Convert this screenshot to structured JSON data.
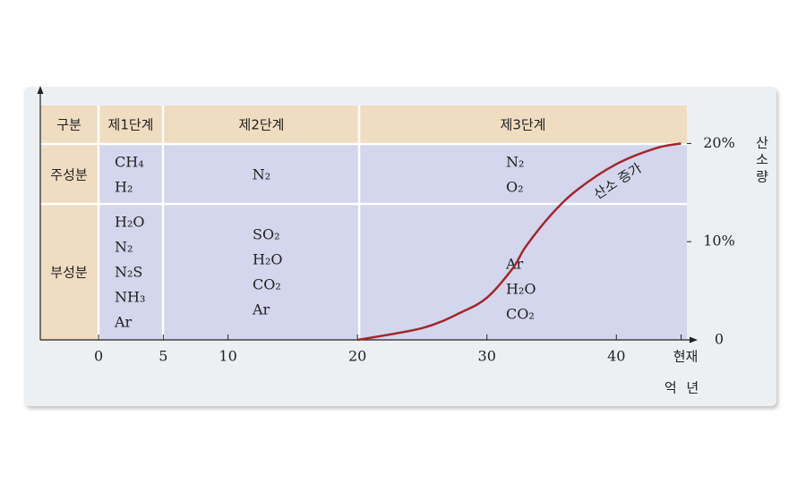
{
  "table": {
    "header": [
      "구분",
      "제1단계",
      "제2단계",
      "제3단계"
    ],
    "rows": [
      {
        "label": "주성분",
        "cells": [
          [
            "CH₄",
            "H₂"
          ],
          [
            "N₂"
          ],
          [
            "N₂",
            "O₂"
          ]
        ]
      },
      {
        "label": "부성분",
        "cells": [
          [
            "H₂O",
            "N₂",
            "N₂S",
            "NH₃",
            "Ar"
          ],
          [
            "SO₂",
            "H₂O",
            "CO₂",
            "Ar"
          ],
          [
            "Ar",
            "H₂O",
            "CO₂"
          ]
        ]
      }
    ]
  },
  "chart_data": {
    "type": "line",
    "series": [
      {
        "name": "산소 증가",
        "color": "#a3262d",
        "x": [
          20,
          25,
          28,
          30,
          32,
          33,
          35,
          37,
          40,
          43,
          45
        ],
        "values": [
          0,
          1.2,
          2.8,
          4.3,
          7.3,
          9.5,
          12.8,
          15.3,
          17.9,
          19.5,
          20
        ]
      }
    ],
    "xlim": [
      -4.5,
      46
    ],
    "ylim": [
      0,
      25.5
    ],
    "xticks": [
      0,
      5,
      10,
      20,
      30,
      40,
      {
        "value": 45,
        "label": "현재"
      }
    ],
    "yticks": [
      0,
      {
        "value": 10,
        "label": "10%"
      },
      {
        "value": 20,
        "label": "20%"
      }
    ],
    "xlabel": "억 년",
    "ylabel": "산소량"
  }
}
